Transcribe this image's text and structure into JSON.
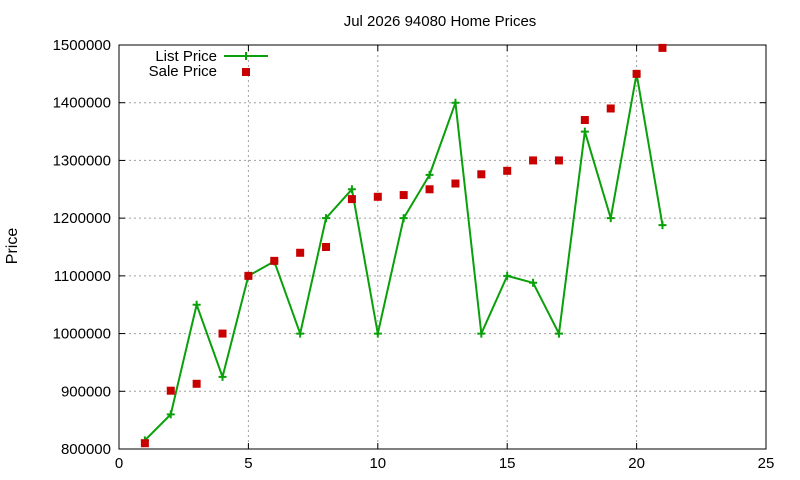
{
  "chart_data": {
    "type": "line",
    "title": "Jul 2026 94080 Home Prices",
    "xlabel": "",
    "ylabel": "Price",
    "xlim": [
      0,
      25
    ],
    "ylim": [
      800000,
      1500000
    ],
    "xticks": [
      0,
      5,
      10,
      15,
      20,
      25
    ],
    "yticks": [
      800000,
      900000,
      1000000,
      1100000,
      1200000,
      1300000,
      1400000,
      1500000
    ],
    "grid": true,
    "legend": "top-left",
    "series": [
      {
        "name": "List Price",
        "style": "line+cross",
        "color": "#0aa00a",
        "x": [
          1,
          2,
          3,
          4,
          5,
          6,
          7,
          8,
          9,
          10,
          11,
          12,
          13,
          14,
          15,
          16,
          17,
          18,
          19,
          20,
          21
        ],
        "y": [
          815000,
          860000,
          1050000,
          925000,
          1100000,
          1125000,
          1000000,
          1200000,
          1250000,
          1000000,
          1200000,
          1275000,
          1400000,
          1000000,
          1100000,
          1088000,
          1000000,
          1350000,
          1200000,
          1450000,
          1188000
        ]
      },
      {
        "name": "Sale Price",
        "style": "square",
        "color": "#c80000",
        "x": [
          1,
          2,
          3,
          4,
          5,
          6,
          7,
          8,
          9,
          10,
          11,
          12,
          13,
          14,
          15,
          16,
          17,
          18,
          19,
          20,
          21
        ],
        "y": [
          810000,
          901000,
          913000,
          1000000,
          1100000,
          1126000,
          1140000,
          1150000,
          1233000,
          1237000,
          1240000,
          1250000,
          1260000,
          1276000,
          1282000,
          1300000,
          1300000,
          1370000,
          1390000,
          1450000,
          1495000
        ]
      }
    ]
  }
}
